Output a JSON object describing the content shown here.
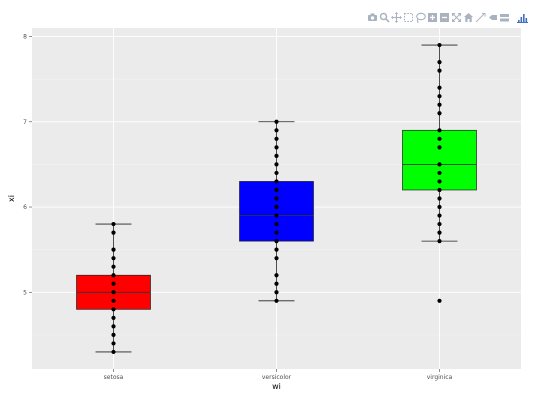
{
  "modebar": {
    "buttons": [
      {
        "icon": "camera-icon"
      },
      {
        "icon": "zoom-icon"
      },
      {
        "icon": "pan-icon"
      },
      {
        "icon": "box-select-icon"
      },
      {
        "icon": "lasso-select-icon"
      },
      {
        "icon": "zoom-in-icon"
      },
      {
        "icon": "zoom-out-icon"
      },
      {
        "icon": "autoscale-icon"
      },
      {
        "icon": "reset-axes-icon"
      },
      {
        "icon": "spike-lines-icon"
      },
      {
        "icon": "hover-closest-icon"
      },
      {
        "icon": "hover-compare-icon"
      },
      {
        "icon": "plotly-logo-icon"
      }
    ],
    "icon_color": "#a9b2bf",
    "logo_color": "#3f6fc4"
  },
  "chart_data": {
    "type": "box",
    "xlabel": "wi",
    "ylabel": "xi",
    "categories": [
      "setosa",
      "versicolor",
      "virginica"
    ],
    "ylim": [
      4.1,
      8.1
    ],
    "yticks": [
      5,
      6,
      7,
      8
    ],
    "grid": true,
    "background": "#ebebeb",
    "boxes": [
      {
        "category": "setosa",
        "min": 4.3,
        "q1": 4.8,
        "median": 5.0,
        "q3": 5.2,
        "max": 5.8,
        "color": "#ff0000",
        "points": [
          4.3,
          4.4,
          4.5,
          4.6,
          4.7,
          4.8,
          4.9,
          5.0,
          5.1,
          5.2,
          5.3,
          5.4,
          5.5,
          5.7,
          5.8
        ]
      },
      {
        "category": "versicolor",
        "min": 4.9,
        "q1": 5.6,
        "median": 5.9,
        "q3": 6.3,
        "max": 7.0,
        "color": "#0000ff",
        "points": [
          4.9,
          5.0,
          5.1,
          5.2,
          5.4,
          5.5,
          5.6,
          5.7,
          5.8,
          5.9,
          6.0,
          6.1,
          6.2,
          6.3,
          6.4,
          6.5,
          6.6,
          6.7,
          6.8,
          6.9,
          7.0
        ]
      },
      {
        "category": "virginica",
        "min": 5.6,
        "q1": 6.2,
        "median": 6.5,
        "q3": 6.9,
        "max": 7.9,
        "color": "#00ff00",
        "points": [
          4.9,
          5.6,
          5.7,
          5.8,
          5.9,
          6.0,
          6.1,
          6.2,
          6.3,
          6.4,
          6.5,
          6.7,
          6.8,
          6.9,
          7.1,
          7.2,
          7.3,
          7.4,
          7.6,
          7.7,
          7.9
        ]
      }
    ]
  }
}
